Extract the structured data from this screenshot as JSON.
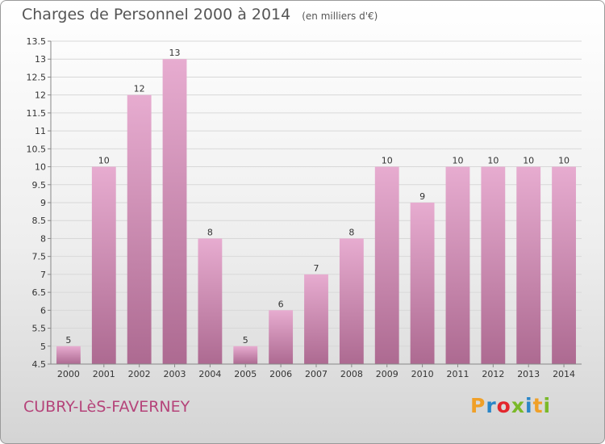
{
  "header": {
    "title": "Charges de Personnel 2000 à 2014",
    "subtitle": "(en milliers d'€)"
  },
  "footer": {
    "commune": "CUBRY-LèS-FAVERNEY",
    "logo_letters": [
      "P",
      "r",
      "o",
      "x",
      "i",
      "t",
      "i"
    ],
    "logo_colors": [
      "#f0a028",
      "#2a86c8",
      "#e3262d",
      "#7ab929",
      "#2a86c8",
      "#f0a028",
      "#7ab929"
    ]
  },
  "colors": {
    "bar_light": "#e7acd0",
    "bar_dark": "#ad6a91",
    "grid": "#d8d8d8",
    "axis": "#888888"
  },
  "chart_data": {
    "type": "bar",
    "title": "Charges de Personnel 2000 à 2014",
    "subtitle": "(en milliers d'€)",
    "categories": [
      "2000",
      "2001",
      "2002",
      "2003",
      "2004",
      "2005",
      "2006",
      "2007",
      "2008",
      "2009",
      "2010",
      "2011",
      "2012",
      "2013",
      "2014"
    ],
    "values": [
      5,
      10,
      12,
      13,
      8,
      5,
      6,
      7,
      8,
      10,
      9,
      10,
      10,
      10,
      10
    ],
    "data_labels": [
      "5",
      "10",
      "12",
      "13",
      "8",
      "5",
      "6",
      "7",
      "8",
      "10",
      "9",
      "10",
      "10",
      "10",
      "10"
    ],
    "ylim": [
      4.5,
      13.5
    ],
    "yticks": [
      "4.5",
      "5",
      "5.5",
      "6",
      "6.5",
      "7",
      "7.5",
      "8",
      "8.5",
      "9",
      "9.5",
      "10",
      "10.5",
      "11",
      "11.5",
      "12",
      "12.5",
      "13",
      "13.5"
    ],
    "grid": true,
    "legend": "none"
  }
}
